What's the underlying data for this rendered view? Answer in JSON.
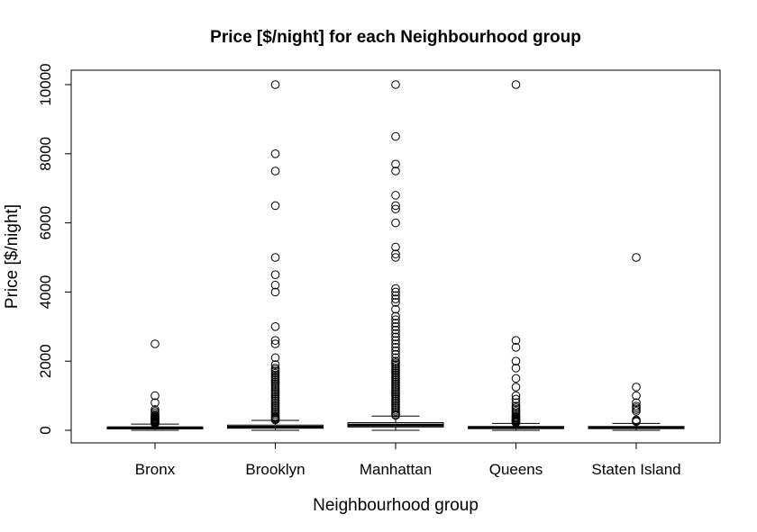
{
  "chart_data": {
    "type": "boxplot",
    "title": "Price [$/night] for each Neighbourhood group",
    "xlabel": "Neighbourhood group",
    "ylabel": "Price [$/night]",
    "ylim": [
      -400,
      10400
    ],
    "yticks": [
      0,
      2000,
      4000,
      6000,
      8000,
      10000
    ],
    "grid": false,
    "legend": "none",
    "categories": [
      "Bronx",
      "Brooklyn",
      "Manhattan",
      "Queens",
      "Staten Island"
    ],
    "boxes": [
      {
        "name": "Bronx",
        "whisker_low": 0,
        "q1": 45,
        "median": 65,
        "q3": 99,
        "whisker_high": 180,
        "outliers": [
          2500,
          1000,
          800,
          600,
          550,
          500,
          450,
          420,
          400,
          380,
          350,
          330,
          310,
          300,
          280,
          260,
          240,
          225,
          210,
          195
        ]
      },
      {
        "name": "Brooklyn",
        "whisker_low": 0,
        "q1": 60,
        "median": 90,
        "q3": 150,
        "whisker_high": 285,
        "outliers": [
          10000,
          8000,
          7500,
          6500,
          5000,
          4500,
          4200,
          4000,
          3000,
          2600,
          2500,
          2100,
          1900,
          1800,
          1750,
          1700,
          1650,
          1600,
          1550,
          1500,
          1450,
          1400,
          1350,
          1300,
          1250,
          1200,
          1150,
          1100,
          1050,
          1000,
          950,
          900,
          850,
          800,
          750,
          700,
          650,
          600,
          550,
          500,
          450,
          400,
          375,
          350,
          325,
          300
        ]
      },
      {
        "name": "Manhattan",
        "whisker_low": 0,
        "q1": 95,
        "median": 150,
        "q3": 220,
        "whisker_high": 410,
        "outliers": [
          10000,
          8500,
          7700,
          7500,
          6800,
          6500,
          6400,
          6000,
          5300,
          5100,
          5000,
          4100,
          4000,
          3900,
          3800,
          3700,
          3500,
          3300,
          3200,
          3100,
          3000,
          2900,
          2800,
          2700,
          2600,
          2500,
          2400,
          2300,
          2200,
          2100,
          2000,
          1950,
          1900,
          1850,
          1800,
          1750,
          1700,
          1650,
          1600,
          1550,
          1500,
          1450,
          1400,
          1350,
          1300,
          1250,
          1200,
          1150,
          1100,
          1050,
          1000,
          950,
          900,
          850,
          800,
          750,
          700,
          650,
          600,
          550,
          500,
          450,
          430
        ]
      },
      {
        "name": "Queens",
        "whisker_low": 0,
        "q1": 50,
        "median": 75,
        "q3": 110,
        "whisker_high": 200,
        "outliers": [
          10000,
          2600,
          2400,
          2000,
          1800,
          1500,
          1250,
          1000,
          900,
          800,
          700,
          650,
          600,
          550,
          500,
          450,
          400,
          375,
          350,
          325,
          300,
          280,
          260,
          240,
          220
        ]
      },
      {
        "name": "Staten Island",
        "whisker_low": 0,
        "q1": 50,
        "median": 75,
        "q3": 110,
        "whisker_high": 200,
        "outliers": [
          5000,
          1250,
          1000,
          800,
          700,
          650,
          600,
          550,
          300,
          275,
          250
        ]
      }
    ]
  }
}
